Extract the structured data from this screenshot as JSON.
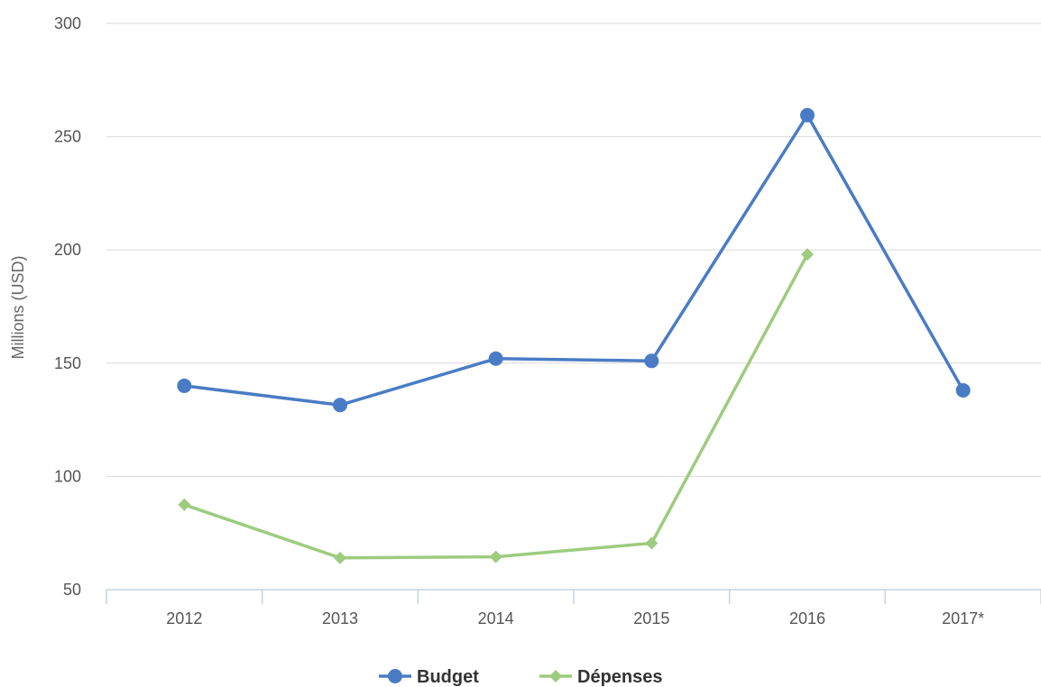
{
  "chart_data": {
    "type": "line",
    "categories": [
      "2012",
      "2013",
      "2014",
      "2015",
      "2016",
      "2017*"
    ],
    "series": [
      {
        "name": "Budget",
        "values": [
          140,
          131.5,
          152,
          151,
          259.5,
          138
        ],
        "color": "#4a7cc5",
        "marker": "circle"
      },
      {
        "name": "Dépenses",
        "values": [
          87.5,
          64,
          64.5,
          70.5,
          198,
          null
        ],
        "color": "#9dcc7f",
        "marker": "diamond"
      }
    ],
    "title": "",
    "xlabel": "",
    "ylabel": "Millions (USD)",
    "ylim": [
      50,
      300
    ],
    "yticks": [
      "50",
      "100",
      "150",
      "200",
      "250",
      "300"
    ],
    "grid": true,
    "legend_position": "bottom-center"
  }
}
